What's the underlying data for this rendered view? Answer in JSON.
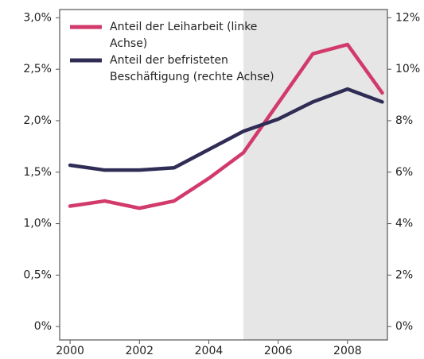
{
  "chart_data": {
    "type": "line",
    "x": [
      2000,
      2001,
      2002,
      2003,
      2004,
      2005,
      2006,
      2007,
      2008,
      2009
    ],
    "xlim": [
      1999.7,
      2009.15
    ],
    "xticks": [
      2000,
      2002,
      2004,
      2006,
      2008
    ],
    "ylim": [
      -0.13,
      3.08
    ],
    "yticks": [
      {
        "value": 0,
        "label": "0%"
      },
      {
        "value": 0.5,
        "label": "0,5%"
      },
      {
        "value": 1.0,
        "label": "1,0%"
      },
      {
        "value": 1.5,
        "label": "1,5%"
      },
      {
        "value": 2.0,
        "label": "2,0%"
      },
      {
        "value": 2.5,
        "label": "2,5%"
      },
      {
        "value": 3.0,
        "label": "3,0%"
      }
    ],
    "y2lim": [
      -0.52,
      12.32
    ],
    "y2ticks": [
      {
        "value": 0,
        "label": "0%"
      },
      {
        "value": 2,
        "label": "2%"
      },
      {
        "value": 4,
        "label": "4%"
      },
      {
        "value": 6,
        "label": "6%"
      },
      {
        "value": 8,
        "label": "8%"
      },
      {
        "value": 10,
        "label": "10%"
      },
      {
        "value": 12,
        "label": "12%"
      }
    ],
    "shaded_xlim": [
      2005,
      2009.15
    ],
    "shade_color": "#e6e6e6",
    "series": [
      {
        "name": "Anteil der Leiharbeit (linke Achse)",
        "color": "#d23a6b",
        "axis": "y",
        "values": [
          1.17,
          1.22,
          1.15,
          1.22,
          1.44,
          1.69,
          2.17,
          2.65,
          2.74,
          2.27
        ]
      },
      {
        "name": "Anteil der befristeten Beschäftigung (rechte Achse)",
        "color": "#2f2d55",
        "axis": "y2",
        "values": [
          6.27,
          6.08,
          6.08,
          6.17,
          6.88,
          7.59,
          8.06,
          8.73,
          9.23,
          8.73
        ]
      }
    ]
  }
}
